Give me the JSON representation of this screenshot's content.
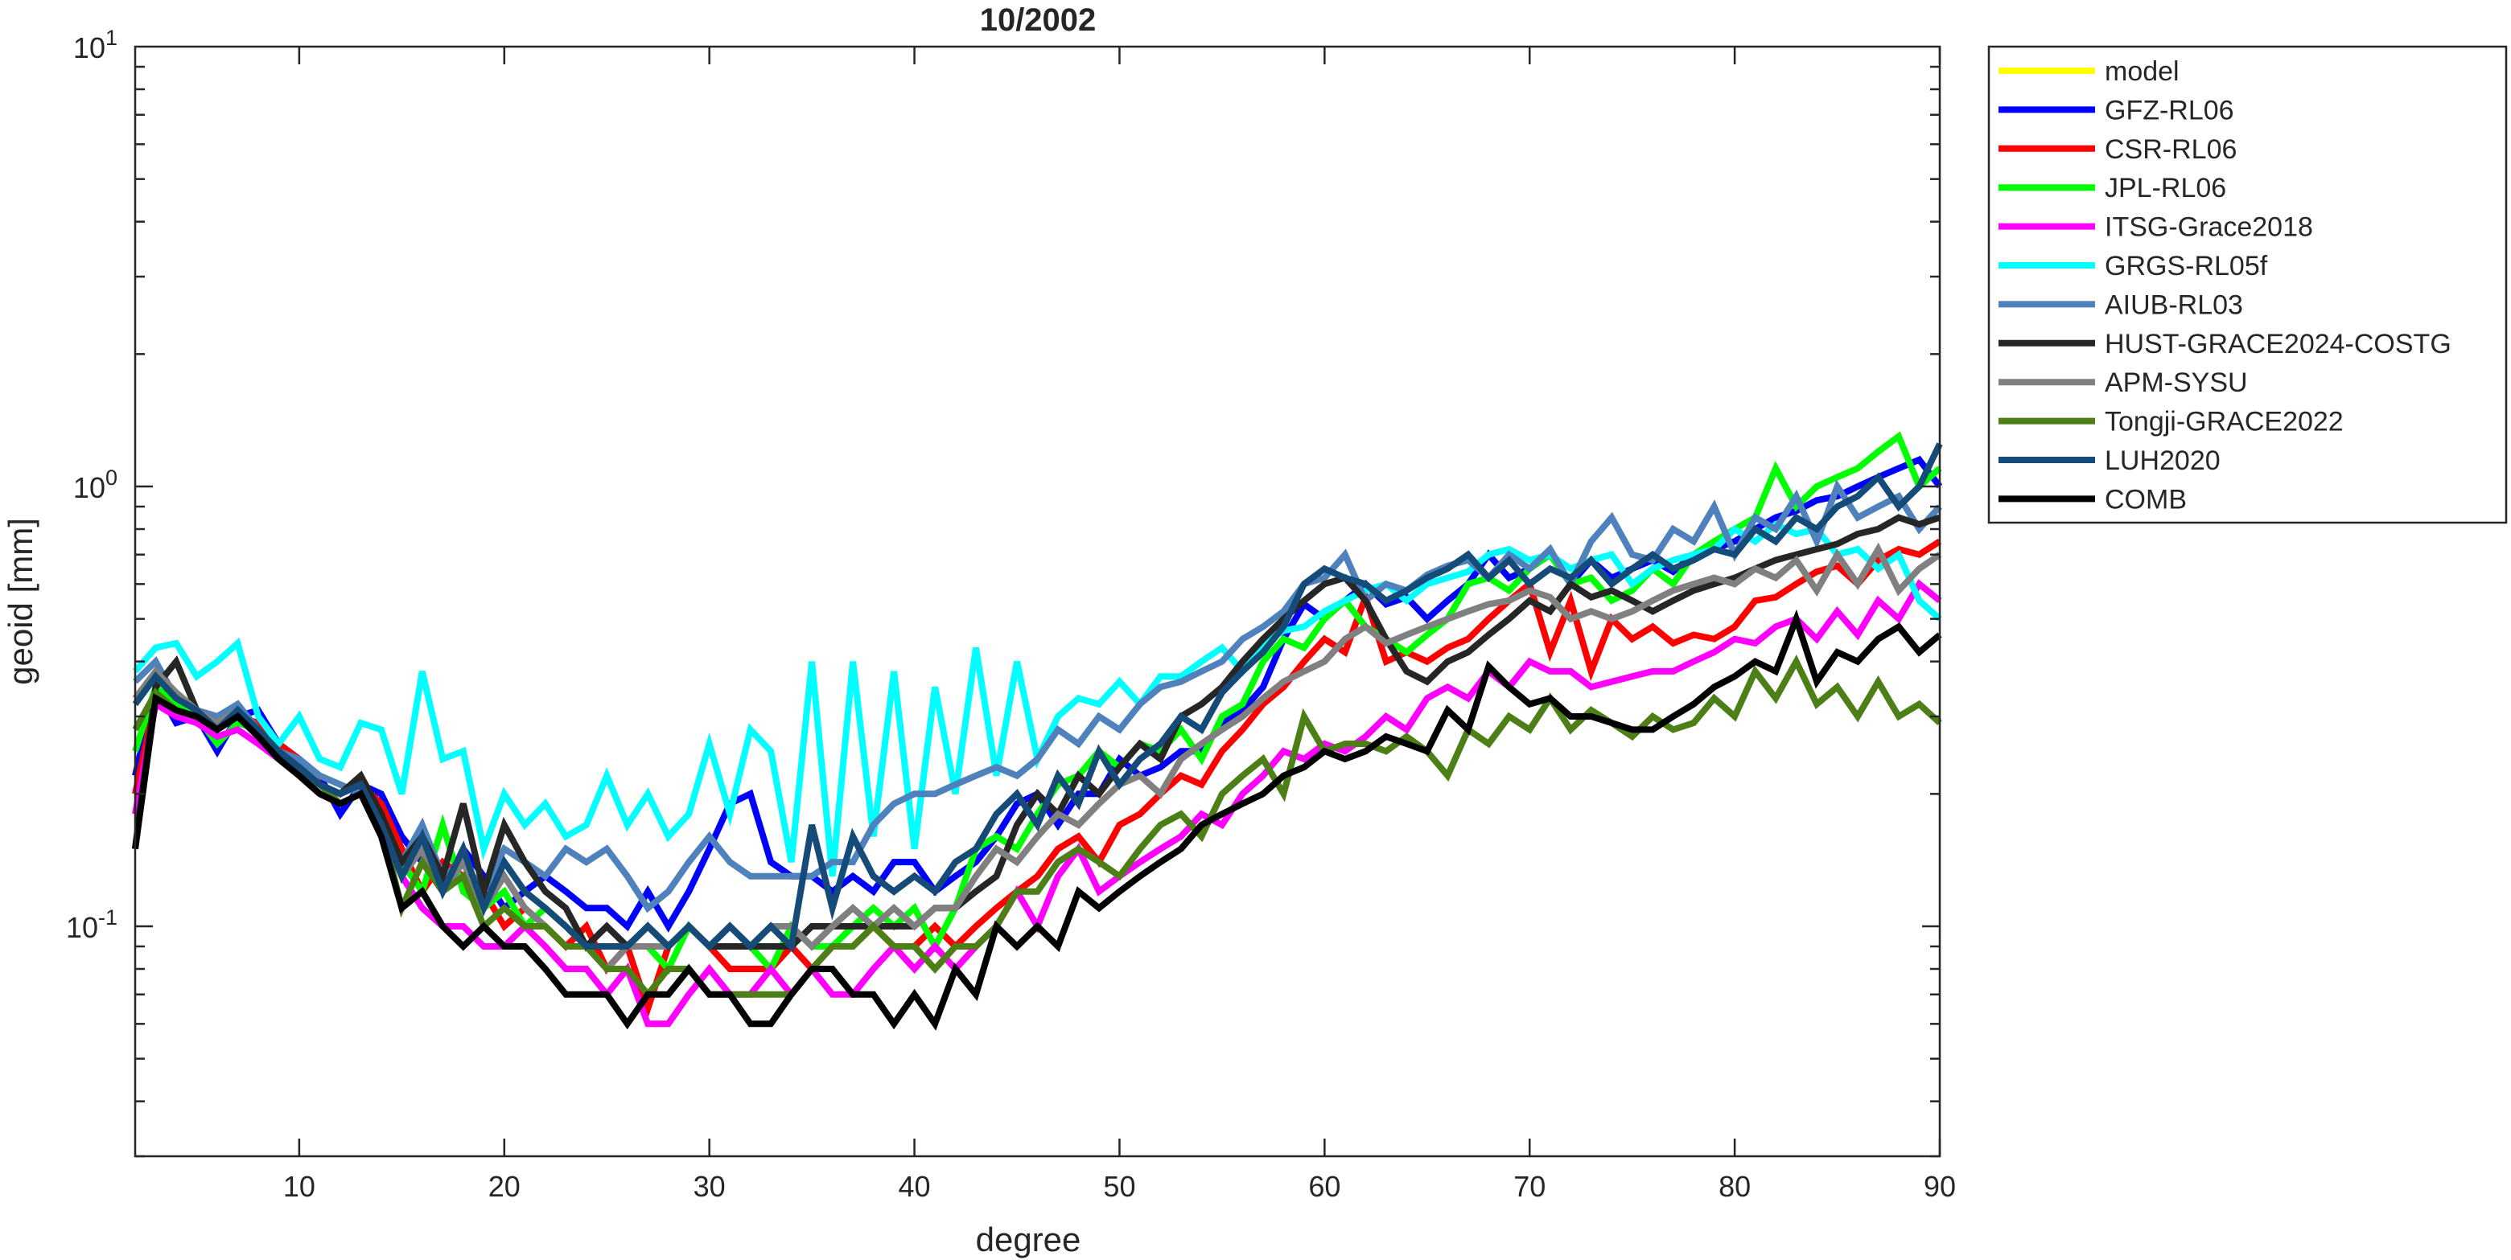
{
  "chart_data": {
    "type": "line",
    "title": "10/2002",
    "xlabel": "degree",
    "ylabel": "geoid [mm]",
    "xlim": [
      2,
      90
    ],
    "ylim": [
      0.03,
      10
    ],
    "yscale": "log",
    "xticks": [
      10,
      20,
      30,
      40,
      50,
      60,
      70,
      80,
      90
    ],
    "yticks": [
      {
        "value": 0.1,
        "base": "10",
        "exp": "-1"
      },
      {
        "value": 1,
        "base": "10",
        "exp": "0"
      },
      {
        "value": 10,
        "base": "10",
        "exp": "1"
      }
    ],
    "grid": false,
    "legend_position": "outside-right",
    "x_start": 2,
    "series": [
      {
        "name": "model",
        "color": "#ffff00",
        "values": []
      },
      {
        "name": "GFZ-RL06",
        "color": "#0000ff",
        "values": [
          0.22,
          0.35,
          0.29,
          0.3,
          0.25,
          0.3,
          0.31,
          0.26,
          0.24,
          0.22,
          0.18,
          0.21,
          0.2,
          0.16,
          0.14,
          0.12,
          0.15,
          0.13,
          0.11,
          0.12,
          0.13,
          0.12,
          0.11,
          0.11,
          0.1,
          0.12,
          0.1,
          0.12,
          0.15,
          0.19,
          0.2,
          0.14,
          0.13,
          0.13,
          0.12,
          0.13,
          0.12,
          0.14,
          0.14,
          0.12,
          0.13,
          0.14,
          0.16,
          0.19,
          0.2,
          0.17,
          0.2,
          0.2,
          0.24,
          0.22,
          0.23,
          0.25,
          0.25,
          0.29,
          0.31,
          0.35,
          0.45,
          0.54,
          0.5,
          0.55,
          0.6,
          0.54,
          0.56,
          0.5,
          0.55,
          0.6,
          0.7,
          0.62,
          0.65,
          0.7,
          0.6,
          0.68,
          0.62,
          0.65,
          0.68,
          0.64,
          0.7,
          0.72,
          0.75,
          0.8,
          0.85,
          0.88,
          0.93,
          0.95,
          1.0,
          1.05,
          1.1,
          1.15,
          1.0
        ]
      },
      {
        "name": "CSR-RL06",
        "color": "#ff0000",
        "values": [
          0.2,
          0.33,
          0.31,
          0.29,
          0.28,
          0.3,
          0.29,
          0.26,
          0.24,
          0.21,
          0.2,
          0.21,
          0.19,
          0.15,
          0.12,
          0.14,
          0.13,
          0.12,
          0.1,
          0.11,
          0.1,
          0.09,
          0.1,
          0.08,
          0.09,
          0.065,
          0.09,
          0.1,
          0.09,
          0.08,
          0.08,
          0.08,
          0.09,
          0.08,
          0.09,
          0.09,
          0.1,
          0.09,
          0.09,
          0.1,
          0.09,
          0.1,
          0.11,
          0.12,
          0.13,
          0.15,
          0.16,
          0.14,
          0.17,
          0.18,
          0.2,
          0.22,
          0.21,
          0.25,
          0.28,
          0.32,
          0.35,
          0.4,
          0.45,
          0.42,
          0.56,
          0.4,
          0.42,
          0.4,
          0.43,
          0.45,
          0.5,
          0.55,
          0.6,
          0.42,
          0.55,
          0.38,
          0.5,
          0.45,
          0.48,
          0.44,
          0.46,
          0.45,
          0.48,
          0.55,
          0.56,
          0.6,
          0.64,
          0.66,
          0.6,
          0.68,
          0.72,
          0.7,
          0.75
        ]
      },
      {
        "name": "JPL-RL06",
        "color": "#00ff00",
        "values": [
          0.25,
          0.35,
          0.32,
          0.3,
          0.26,
          0.29,
          0.28,
          0.25,
          0.23,
          0.22,
          0.21,
          0.2,
          0.18,
          0.14,
          0.12,
          0.17,
          0.12,
          0.11,
          0.12,
          0.1,
          0.11,
          0.1,
          0.09,
          0.09,
          0.09,
          0.09,
          0.08,
          0.1,
          0.09,
          0.1,
          0.09,
          0.08,
          0.1,
          0.09,
          0.09,
          0.1,
          0.11,
          0.1,
          0.11,
          0.09,
          0.11,
          0.15,
          0.16,
          0.15,
          0.18,
          0.21,
          0.22,
          0.25,
          0.23,
          0.26,
          0.25,
          0.28,
          0.24,
          0.3,
          0.32,
          0.4,
          0.45,
          0.43,
          0.5,
          0.55,
          0.48,
          0.45,
          0.42,
          0.46,
          0.5,
          0.6,
          0.62,
          0.58,
          0.65,
          0.7,
          0.6,
          0.62,
          0.55,
          0.58,
          0.65,
          0.6,
          0.7,
          0.75,
          0.8,
          0.85,
          1.1,
          0.9,
          1.0,
          1.05,
          1.1,
          1.2,
          1.3,
          1.0,
          1.1
        ]
      },
      {
        "name": "ITSG-Grace2018",
        "color": "#ff00ff",
        "values": [
          0.18,
          0.32,
          0.3,
          0.29,
          0.27,
          0.28,
          0.26,
          0.24,
          0.22,
          0.2,
          0.19,
          0.2,
          0.17,
          0.13,
          0.11,
          0.1,
          0.1,
          0.09,
          0.09,
          0.1,
          0.09,
          0.08,
          0.08,
          0.07,
          0.08,
          0.06,
          0.06,
          0.07,
          0.08,
          0.07,
          0.07,
          0.08,
          0.07,
          0.08,
          0.07,
          0.07,
          0.08,
          0.09,
          0.08,
          0.09,
          0.08,
          0.09,
          0.1,
          0.12,
          0.1,
          0.13,
          0.15,
          0.12,
          0.13,
          0.14,
          0.15,
          0.16,
          0.18,
          0.17,
          0.2,
          0.22,
          0.25,
          0.24,
          0.26,
          0.25,
          0.27,
          0.3,
          0.28,
          0.33,
          0.35,
          0.33,
          0.38,
          0.35,
          0.4,
          0.38,
          0.38,
          0.35,
          0.36,
          0.37,
          0.38,
          0.38,
          0.4,
          0.42,
          0.45,
          0.44,
          0.48,
          0.5,
          0.45,
          0.52,
          0.46,
          0.55,
          0.5,
          0.6,
          0.55
        ]
      },
      {
        "name": "GRGS-RL05f",
        "color": "#00ffff",
        "values": [
          0.38,
          0.43,
          0.44,
          0.37,
          0.4,
          0.44,
          0.3,
          0.26,
          0.3,
          0.24,
          0.23,
          0.29,
          0.28,
          0.2,
          0.38,
          0.24,
          0.25,
          0.15,
          0.2,
          0.17,
          0.19,
          0.16,
          0.17,
          0.22,
          0.17,
          0.2,
          0.16,
          0.18,
          0.26,
          0.18,
          0.28,
          0.25,
          0.14,
          0.4,
          0.13,
          0.4,
          0.16,
          0.38,
          0.15,
          0.35,
          0.2,
          0.43,
          0.22,
          0.4,
          0.24,
          0.3,
          0.33,
          0.32,
          0.36,
          0.32,
          0.37,
          0.37,
          0.4,
          0.43,
          0.38,
          0.44,
          0.47,
          0.48,
          0.52,
          0.55,
          0.58,
          0.6,
          0.55,
          0.6,
          0.62,
          0.64,
          0.7,
          0.72,
          0.68,
          0.7,
          0.65,
          0.68,
          0.7,
          0.6,
          0.65,
          0.68,
          0.7,
          0.72,
          0.8,
          0.75,
          0.82,
          0.78,
          0.8,
          0.7,
          0.72,
          0.65,
          0.7,
          0.55,
          0.5
        ]
      },
      {
        "name": "AIUB-RL03",
        "color": "#4f81bd",
        "values": [
          0.36,
          0.4,
          0.33,
          0.31,
          0.3,
          0.32,
          0.28,
          0.25,
          0.24,
          0.22,
          0.21,
          0.2,
          0.17,
          0.14,
          0.17,
          0.13,
          0.14,
          0.12,
          0.15,
          0.14,
          0.13,
          0.15,
          0.14,
          0.15,
          0.13,
          0.11,
          0.12,
          0.14,
          0.16,
          0.14,
          0.13,
          0.13,
          0.13,
          0.13,
          0.14,
          0.14,
          0.17,
          0.19,
          0.2,
          0.2,
          0.21,
          0.22,
          0.23,
          0.22,
          0.24,
          0.28,
          0.26,
          0.3,
          0.28,
          0.32,
          0.35,
          0.36,
          0.38,
          0.4,
          0.45,
          0.48,
          0.52,
          0.6,
          0.62,
          0.7,
          0.55,
          0.6,
          0.58,
          0.63,
          0.66,
          0.68,
          0.62,
          0.7,
          0.65,
          0.72,
          0.6,
          0.75,
          0.85,
          0.7,
          0.68,
          0.8,
          0.75,
          0.9,
          0.7,
          0.85,
          0.8,
          0.95,
          0.75,
          1.0,
          0.85,
          0.9,
          0.95,
          0.8,
          0.9
        ]
      },
      {
        "name": "HUST-GRACE2024-COSTG",
        "color": "#262626",
        "values": [
          0.15,
          0.35,
          0.4,
          0.31,
          0.29,
          0.3,
          0.28,
          0.25,
          0.23,
          0.21,
          0.2,
          0.22,
          0.18,
          0.14,
          0.16,
          0.13,
          0.19,
          0.12,
          0.17,
          0.14,
          0.12,
          0.11,
          0.09,
          0.1,
          0.09,
          0.1,
          0.09,
          0.1,
          0.09,
          0.09,
          0.09,
          0.09,
          0.09,
          0.1,
          0.1,
          0.1,
          0.1,
          0.1,
          0.1,
          0.11,
          0.11,
          0.12,
          0.13,
          0.17,
          0.2,
          0.18,
          0.22,
          0.2,
          0.23,
          0.26,
          0.24,
          0.3,
          0.32,
          0.35,
          0.4,
          0.45,
          0.5,
          0.55,
          0.6,
          0.62,
          0.55,
          0.45,
          0.38,
          0.36,
          0.4,
          0.42,
          0.46,
          0.5,
          0.55,
          0.52,
          0.6,
          0.56,
          0.58,
          0.55,
          0.52,
          0.55,
          0.58,
          0.6,
          0.62,
          0.65,
          0.68,
          0.7,
          0.72,
          0.74,
          0.78,
          0.8,
          0.85,
          0.82,
          0.85
        ]
      },
      {
        "name": "APM-SYSU",
        "color": "#808080",
        "values": [
          0.33,
          0.38,
          0.34,
          0.31,
          0.29,
          0.31,
          0.28,
          0.25,
          0.23,
          0.21,
          0.2,
          0.21,
          0.17,
          0.13,
          0.15,
          0.12,
          0.14,
          0.11,
          0.13,
          0.11,
          0.1,
          0.09,
          0.09,
          0.08,
          0.09,
          0.09,
          0.09,
          0.1,
          0.09,
          0.1,
          0.09,
          0.1,
          0.1,
          0.09,
          0.1,
          0.11,
          0.1,
          0.11,
          0.1,
          0.11,
          0.11,
          0.13,
          0.15,
          0.14,
          0.16,
          0.18,
          0.17,
          0.19,
          0.21,
          0.22,
          0.2,
          0.24,
          0.26,
          0.28,
          0.3,
          0.33,
          0.36,
          0.38,
          0.4,
          0.45,
          0.48,
          0.44,
          0.46,
          0.48,
          0.5,
          0.52,
          0.54,
          0.55,
          0.58,
          0.56,
          0.5,
          0.52,
          0.5,
          0.52,
          0.55,
          0.58,
          0.6,
          0.62,
          0.6,
          0.65,
          0.62,
          0.68,
          0.58,
          0.7,
          0.6,
          0.72,
          0.58,
          0.65,
          0.7
        ]
      },
      {
        "name": "Tongji-GRACE2022",
        "color": "#4d7f17",
        "values": [
          0.28,
          0.34,
          0.31,
          0.3,
          0.28,
          0.3,
          0.27,
          0.24,
          0.22,
          0.21,
          0.19,
          0.2,
          0.17,
          0.11,
          0.14,
          0.12,
          0.13,
          0.1,
          0.11,
          0.1,
          0.1,
          0.09,
          0.09,
          0.08,
          0.08,
          0.07,
          0.08,
          0.08,
          0.07,
          0.07,
          0.07,
          0.07,
          0.07,
          0.08,
          0.09,
          0.09,
          0.1,
          0.09,
          0.09,
          0.08,
          0.09,
          0.09,
          0.1,
          0.12,
          0.12,
          0.14,
          0.15,
          0.14,
          0.13,
          0.15,
          0.17,
          0.18,
          0.16,
          0.2,
          0.22,
          0.24,
          0.2,
          0.3,
          0.25,
          0.26,
          0.26,
          0.25,
          0.27,
          0.25,
          0.22,
          0.28,
          0.26,
          0.3,
          0.28,
          0.33,
          0.28,
          0.31,
          0.29,
          0.27,
          0.3,
          0.28,
          0.29,
          0.33,
          0.3,
          0.38,
          0.33,
          0.4,
          0.32,
          0.35,
          0.3,
          0.36,
          0.3,
          0.32,
          0.29
        ]
      },
      {
        "name": "LUH2020",
        "color": "#154b78",
        "values": [
          0.32,
          0.37,
          0.33,
          0.31,
          0.28,
          0.31,
          0.28,
          0.25,
          0.23,
          0.21,
          0.2,
          0.21,
          0.17,
          0.13,
          0.16,
          0.12,
          0.15,
          0.11,
          0.14,
          0.12,
          0.11,
          0.1,
          0.09,
          0.09,
          0.09,
          0.1,
          0.09,
          0.1,
          0.09,
          0.1,
          0.09,
          0.1,
          0.09,
          0.17,
          0.11,
          0.16,
          0.13,
          0.12,
          0.13,
          0.12,
          0.14,
          0.15,
          0.18,
          0.2,
          0.17,
          0.22,
          0.19,
          0.25,
          0.21,
          0.24,
          0.26,
          0.3,
          0.28,
          0.34,
          0.38,
          0.42,
          0.48,
          0.6,
          0.65,
          0.62,
          0.6,
          0.55,
          0.58,
          0.62,
          0.65,
          0.7,
          0.62,
          0.68,
          0.6,
          0.65,
          0.62,
          0.68,
          0.6,
          0.65,
          0.7,
          0.65,
          0.68,
          0.72,
          0.7,
          0.8,
          0.75,
          0.85,
          0.8,
          0.9,
          0.95,
          1.05,
          0.9,
          1.0,
          1.25
        ]
      },
      {
        "name": "COMB",
        "color": "#000000",
        "values": [
          0.15,
          0.33,
          0.31,
          0.3,
          0.28,
          0.3,
          0.27,
          0.24,
          0.22,
          0.2,
          0.19,
          0.2,
          0.16,
          0.11,
          0.12,
          0.1,
          0.09,
          0.1,
          0.09,
          0.09,
          0.08,
          0.07,
          0.07,
          0.07,
          0.06,
          0.07,
          0.07,
          0.08,
          0.07,
          0.07,
          0.06,
          0.06,
          0.07,
          0.08,
          0.08,
          0.07,
          0.07,
          0.06,
          0.07,
          0.06,
          0.08,
          0.07,
          0.1,
          0.09,
          0.1,
          0.09,
          0.12,
          0.11,
          0.12,
          0.13,
          0.14,
          0.15,
          0.17,
          0.18,
          0.19,
          0.2,
          0.22,
          0.23,
          0.25,
          0.24,
          0.25,
          0.27,
          0.26,
          0.25,
          0.31,
          0.28,
          0.39,
          0.35,
          0.32,
          0.33,
          0.3,
          0.3,
          0.29,
          0.28,
          0.28,
          0.3,
          0.32,
          0.35,
          0.37,
          0.4,
          0.38,
          0.5,
          0.36,
          0.42,
          0.4,
          0.45,
          0.48,
          0.42,
          0.46
        ]
      }
    ]
  }
}
